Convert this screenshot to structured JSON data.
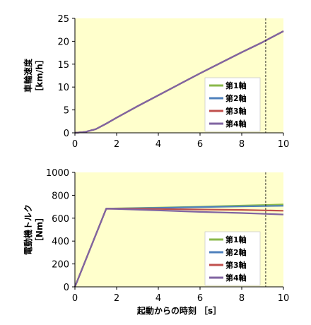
{
  "chart_data": [
    {
      "type": "line",
      "ylabel": "車輪速度",
      "ylabel_unit": "［km/h］",
      "xlim": [
        0,
        10
      ],
      "ylim": [
        0,
        25
      ],
      "xticks": [
        0,
        2,
        4,
        6,
        8,
        10
      ],
      "yticks": [
        0,
        5,
        10,
        15,
        20,
        25
      ],
      "grid": false,
      "legend_position": "lower-right",
      "vline_x": 9.15,
      "series": [
        {
          "name": "第1軸",
          "color": "#8ab84a",
          "x": [
            0,
            0.5,
            1,
            1.5,
            2,
            3,
            4,
            5,
            6,
            7,
            8,
            9,
            10
          ],
          "y": [
            0,
            0.2,
            0.8,
            2,
            3.3,
            5.8,
            8.2,
            10.6,
            13,
            15.3,
            17.6,
            19.8,
            22.2
          ]
        },
        {
          "name": "第2軸",
          "color": "#4f81bd",
          "x": [
            0,
            0.5,
            1,
            1.5,
            2,
            3,
            4,
            5,
            6,
            7,
            8,
            9,
            10
          ],
          "y": [
            0,
            0.2,
            0.8,
            2,
            3.3,
            5.8,
            8.2,
            10.6,
            13,
            15.3,
            17.6,
            19.8,
            22.2
          ]
        },
        {
          "name": "第3軸",
          "color": "#c0504d",
          "x": [
            0,
            0.5,
            1,
            1.5,
            2,
            3,
            4,
            5,
            6,
            7,
            8,
            9,
            10
          ],
          "y": [
            0,
            0.2,
            0.8,
            2,
            3.3,
            5.8,
            8.2,
            10.6,
            13,
            15.3,
            17.6,
            19.8,
            22.2
          ]
        },
        {
          "name": "第4軸",
          "color": "#8064a2",
          "x": [
            0,
            0.5,
            1,
            1.5,
            2,
            3,
            4,
            5,
            6,
            7,
            8,
            9,
            10
          ],
          "y": [
            0,
            0.2,
            0.8,
            2,
            3.3,
            5.8,
            8.2,
            10.6,
            13,
            15.3,
            17.6,
            19.8,
            22.2
          ]
        }
      ]
    },
    {
      "type": "line",
      "ylabel": "電動機トルク",
      "ylabel_unit": "［Nm］",
      "xlabel": "起動からの時刻 ［s］",
      "xlim": [
        0,
        10
      ],
      "ylim": [
        0,
        1000
      ],
      "xticks": [
        0,
        2,
        4,
        6,
        8,
        10
      ],
      "yticks": [
        0,
        200,
        400,
        600,
        800,
        1000
      ],
      "grid": false,
      "legend_position": "lower-right",
      "vline_x": 9.15,
      "series": [
        {
          "name": "第1軸",
          "color": "#8ab84a",
          "x": [
            0,
            1.5,
            2,
            4,
            6,
            8,
            10
          ],
          "y": [
            0,
            683,
            685,
            692,
            700,
            710,
            720
          ]
        },
        {
          "name": "第2軸",
          "color": "#4f81bd",
          "x": [
            0,
            1.5,
            2,
            4,
            6,
            8,
            10
          ],
          "y": [
            0,
            683,
            684,
            690,
            697,
            703,
            708
          ]
        },
        {
          "name": "第3軸",
          "color": "#c0504d",
          "x": [
            0,
            1.5,
            2,
            4,
            6,
            8,
            10
          ],
          "y": [
            0,
            683,
            682,
            680,
            676,
            672,
            665
          ]
        },
        {
          "name": "第4軸",
          "color": "#8064a2",
          "x": [
            0,
            1.5,
            2,
            4,
            6,
            8,
            10
          ],
          "y": [
            0,
            683,
            680,
            668,
            655,
            645,
            632
          ]
        }
      ]
    }
  ]
}
